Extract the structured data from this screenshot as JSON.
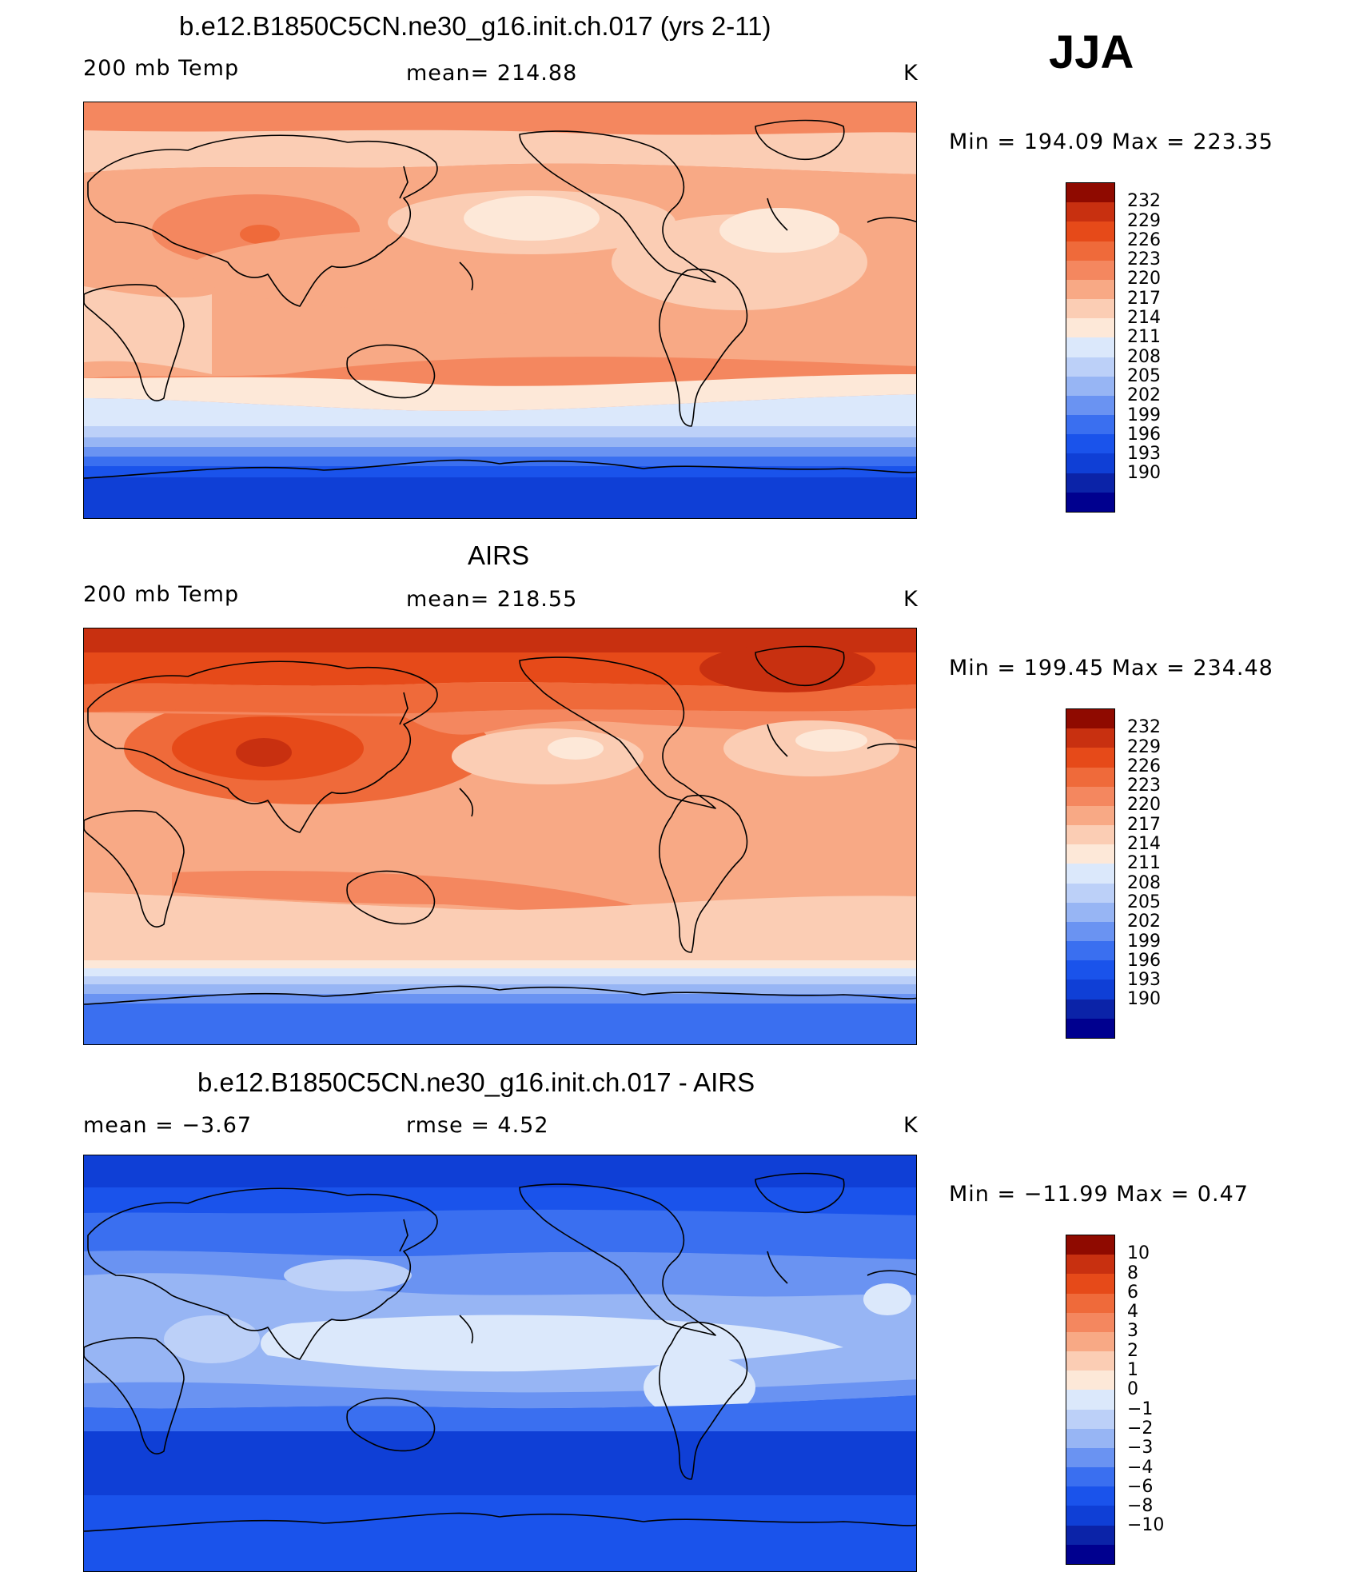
{
  "season": "JJA",
  "colors": {
    "temp_palette": [
      "#00008f",
      "#0b23a8",
      "#0f3fd6",
      "#1a53eb",
      "#3a6ff0",
      "#6a93f2",
      "#97b5f4",
      "#bcd0f8",
      "#dbe8fb",
      "#fde8d8",
      "#fbcdb4",
      "#f8a985",
      "#f4875f",
      "#ef6a3a",
      "#e64a19",
      "#c83010",
      "#8f0a00"
    ],
    "diff_palette": [
      "#00008f",
      "#0b23a8",
      "#0f3fd6",
      "#1a53eb",
      "#3a6ff0",
      "#6a93f2",
      "#97b5f4",
      "#bcd0f8",
      "#dbe8fb",
      "#fde8d8",
      "#fbcdb4",
      "#f8a985",
      "#f4875f",
      "#ef6a3a",
      "#e64a19",
      "#c83010",
      "#8f0a00"
    ]
  },
  "panels": [
    {
      "title": "b.e12.B1850C5CN.ne30_g16.init.ch.017 (yrs 2-11)",
      "left_label": "200 mb Temp",
      "center_label": "mean=  214.88",
      "units": "K",
      "minmax": "Min  =  194.09  Max  =  223.35",
      "colorbar_labels": [
        "232",
        "229",
        "226",
        "223",
        "220",
        "217",
        "214",
        "211",
        "208",
        "205",
        "202",
        "199",
        "196",
        "193",
        "190"
      ]
    },
    {
      "title": "AIRS",
      "left_label": "200 mb Temp",
      "center_label": "mean=  218.55",
      "units": "K",
      "minmax": "Min  =  199.45  Max  =  234.48",
      "colorbar_labels": [
        "232",
        "229",
        "226",
        "223",
        "220",
        "217",
        "214",
        "211",
        "208",
        "205",
        "202",
        "199",
        "196",
        "193",
        "190"
      ]
    },
    {
      "title": "b.e12.B1850C5CN.ne30_g16.init.ch.017 - AIRS",
      "left_label": "mean  =    −3.67",
      "center_label": "rmse  =     4.52",
      "units": "K",
      "minmax": "Min  =  −11.99  Max  =     0.47",
      "colorbar_labels": [
        "10",
        "8",
        "6",
        "4",
        "3",
        "2",
        "1",
        "0",
        "−1",
        "−2",
        "−3",
        "−4",
        "−6",
        "−8",
        "−10"
      ]
    }
  ]
}
